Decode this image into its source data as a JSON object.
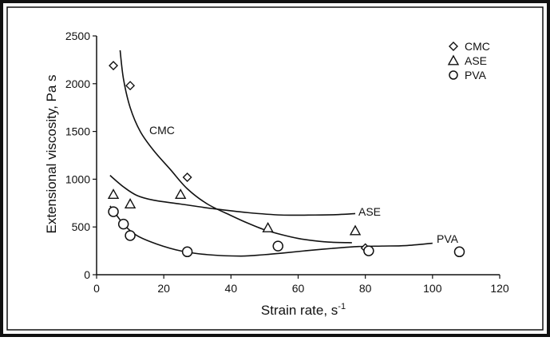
{
  "chart_data": {
    "type": "scatter",
    "xlabel": "Strain rate, s",
    "xlabel_sup": "-1",
    "ylabel": "Extensional viscosity, Pa s",
    "xlim": [
      0,
      120
    ],
    "ylim": [
      0,
      2500
    ],
    "x_ticks": [
      0,
      20,
      40,
      60,
      80,
      100,
      120
    ],
    "y_ticks": [
      0,
      500,
      1000,
      1500,
      2000,
      2500
    ],
    "grid": false,
    "legend_position": "top-right",
    "series": [
      {
        "name": "CMC",
        "marker": "diamond",
        "points": [
          [
            5,
            2190
          ],
          [
            10,
            1980
          ],
          [
            27,
            1020
          ],
          [
            80,
            280
          ]
        ],
        "fit_label": "CMC",
        "fit": [
          [
            7,
            2350
          ],
          [
            8,
            2050
          ],
          [
            10,
            1750
          ],
          [
            13,
            1500
          ],
          [
            17,
            1300
          ],
          [
            22,
            1100
          ],
          [
            27,
            900
          ],
          [
            33,
            740
          ],
          [
            40,
            620
          ],
          [
            45,
            540
          ],
          [
            50,
            470
          ],
          [
            55,
            420
          ],
          [
            60,
            380
          ],
          [
            65,
            355
          ],
          [
            70,
            340
          ],
          [
            76,
            335
          ]
        ]
      },
      {
        "name": "ASE",
        "marker": "triangle",
        "points": [
          [
            5,
            840
          ],
          [
            10,
            740
          ],
          [
            25,
            840
          ],
          [
            51,
            490
          ],
          [
            77,
            460
          ]
        ],
        "fit_label": "ASE",
        "fit": [
          [
            4,
            1040
          ],
          [
            8,
            920
          ],
          [
            12,
            830
          ],
          [
            17,
            780
          ],
          [
            25,
            740
          ],
          [
            35,
            690
          ],
          [
            45,
            650
          ],
          [
            55,
            625
          ],
          [
            65,
            625
          ],
          [
            72,
            630
          ],
          [
            77,
            640
          ]
        ]
      },
      {
        "name": "PVA",
        "marker": "circle",
        "points": [
          [
            5,
            660
          ],
          [
            8,
            530
          ],
          [
            10,
            410
          ],
          [
            27,
            240
          ],
          [
            54,
            300
          ],
          [
            81,
            250
          ],
          [
            108,
            240
          ]
        ],
        "fit_label": "PVA",
        "fit": [
          [
            4,
            720
          ],
          [
            8,
            530
          ],
          [
            12,
            410
          ],
          [
            18,
            320
          ],
          [
            25,
            250
          ],
          [
            33,
            210
          ],
          [
            43,
            195
          ],
          [
            50,
            210
          ],
          [
            55,
            225
          ],
          [
            62,
            250
          ],
          [
            70,
            275
          ],
          [
            78,
            295
          ],
          [
            85,
            300
          ],
          [
            92,
            305
          ],
          [
            100,
            330
          ]
        ]
      }
    ]
  }
}
